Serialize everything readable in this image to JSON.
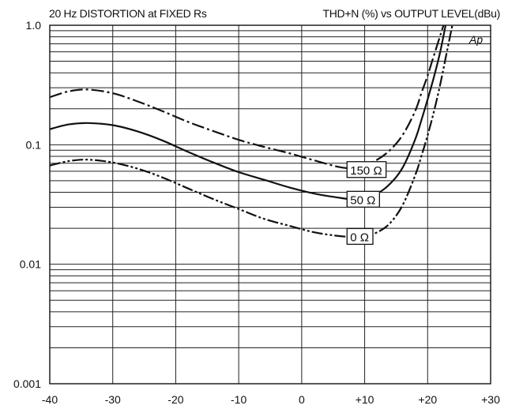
{
  "chart_data": {
    "type": "line",
    "title": "20 Hz DISTORTION at FIXED Rs",
    "subtitle": "THD+N (%) vs OUTPUT LEVEL(dBu)",
    "xlabel": "",
    "ylabel": "",
    "xlim": [
      -40,
      30
    ],
    "ylim": [
      0.001,
      1.0
    ],
    "y_scale": "log",
    "grid": true,
    "x_ticks": [
      {
        "value": -40,
        "label": "-40"
      },
      {
        "value": -30,
        "label": "-30"
      },
      {
        "value": -20,
        "label": "-20"
      },
      {
        "value": -10,
        "label": "-10"
      },
      {
        "value": 0,
        "label": "0"
      },
      {
        "value": 10,
        "label": "+10"
      },
      {
        "value": 20,
        "label": "+20"
      },
      {
        "value": 30,
        "label": "+30"
      }
    ],
    "y_ticks": [
      {
        "value": 1.0,
        "label": "1.0"
      },
      {
        "value": 0.1,
        "label": "0.1"
      },
      {
        "value": 0.01,
        "label": "0.01"
      },
      {
        "value": 0.001,
        "label": "0.001"
      }
    ],
    "corner_annotation": "Ap",
    "series": [
      {
        "name": "150 Ω",
        "style": "dash-dot",
        "x": [
          -40,
          -37,
          -34,
          -30,
          -26,
          -22,
          -18,
          -14,
          -10,
          -6,
          -2,
          2,
          6,
          8,
          10,
          12,
          14,
          16,
          18,
          19,
          20,
          21,
          22,
          23
        ],
        "y": [
          0.25,
          0.28,
          0.29,
          0.27,
          0.23,
          0.19,
          0.155,
          0.13,
          0.11,
          0.096,
          0.085,
          0.074,
          0.065,
          0.064,
          0.068,
          0.075,
          0.09,
          0.12,
          0.19,
          0.27,
          0.38,
          0.56,
          0.82,
          1.2
        ]
      },
      {
        "name": "50 Ω",
        "style": "solid",
        "x": [
          -40,
          -37,
          -34,
          -30,
          -26,
          -22,
          -18,
          -14,
          -10,
          -6,
          -2,
          2,
          6,
          8,
          10,
          12,
          14,
          16,
          18,
          19,
          20,
          21,
          22,
          23
        ],
        "y": [
          0.135,
          0.148,
          0.152,
          0.146,
          0.129,
          0.108,
          0.087,
          0.071,
          0.059,
          0.051,
          0.044,
          0.039,
          0.036,
          0.035,
          0.036,
          0.039,
          0.047,
          0.064,
          0.11,
          0.16,
          0.24,
          0.37,
          0.6,
          1.1
        ]
      },
      {
        "name": "0 Ω",
        "style": "dash-dot-dot",
        "x": [
          -40,
          -37,
          -34,
          -30,
          -26,
          -22,
          -18,
          -14,
          -10,
          -6,
          -2,
          2,
          6,
          8,
          10,
          12,
          14,
          16,
          18,
          19,
          20,
          21,
          22,
          23,
          24
        ],
        "y": [
          0.067,
          0.073,
          0.075,
          0.071,
          0.063,
          0.053,
          0.043,
          0.035,
          0.029,
          0.024,
          0.021,
          0.0185,
          0.0172,
          0.017,
          0.0172,
          0.0185,
          0.022,
          0.031,
          0.055,
          0.08,
          0.12,
          0.19,
          0.32,
          0.58,
          1.05
        ]
      }
    ],
    "labels": [
      {
        "series": "150 Ω",
        "text": "150 Ω",
        "x": 7.2,
        "y": 0.062
      },
      {
        "series": "50 Ω",
        "text": "50 Ω",
        "x": 7.2,
        "y": 0.035
      },
      {
        "series": "0 Ω",
        "text": "0 Ω",
        "x": 7.2,
        "y": 0.0171
      }
    ]
  }
}
